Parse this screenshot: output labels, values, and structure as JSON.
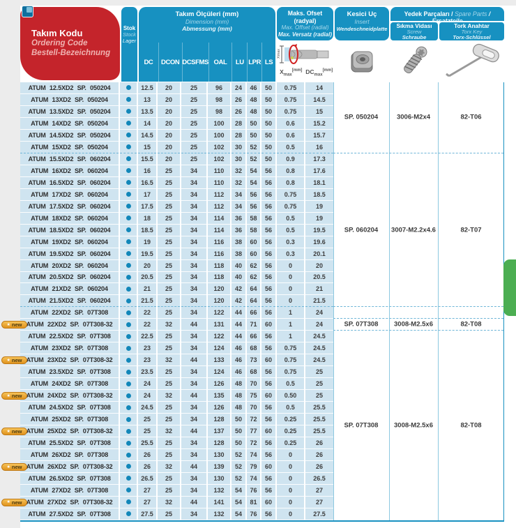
{
  "header": {
    "ordering_code": {
      "line1": "Takım Kodu",
      "line2": "Ordering Code",
      "line3": "Bestell-Bezeichnung"
    },
    "stock": {
      "line1": "Stok",
      "line2": "Stock",
      "line3": "Lager"
    },
    "dimensions": {
      "title1": "Takım Ölçüleri (mm)",
      "title2": "Dimension (mm)",
      "title3": "Abmessung (mm)",
      "columns": [
        "DC",
        "DCON",
        "DCSFMS",
        "OAL",
        "LU",
        "LPR",
        "LS"
      ]
    },
    "offset": {
      "title1": "Maks. Ofset (radyal)",
      "title2": "Max. Offset (radial)",
      "title3": "Max. Versatz (radial)",
      "xmax": {
        "base": "X",
        "sub": "max",
        "unit": "[mm]"
      },
      "dcmax": {
        "base": "DC",
        "sub": "max",
        "unit": "[mm]"
      },
      "illus_label": "Xmax"
    },
    "insert": {
      "title1": "Kesici Uç",
      "title2": "Insert",
      "title3": "Wendeschneidplatte"
    },
    "spare": {
      "banner1": "Yedek Parçaları /",
      "banner2": " Spare Parts ",
      "banner3": "/ Ersatzteile",
      "screw": {
        "title1": "Sıkma Vidası",
        "title2": "Screw",
        "title3": "Schraube"
      },
      "torx": {
        "title1": "Tork Anahtar",
        "title2": "Torx Key",
        "title3": "Torx-Schlüssel"
      }
    }
  },
  "badge": {
    "label": "new",
    "star": "★"
  },
  "rows": [
    {
      "code": "ATUM 12.5XD2 SP. 050204",
      "new": false,
      "stock": true,
      "dc": "12.5",
      "dcon": "20",
      "dcsfms": "25",
      "oal": "96",
      "lu": "24",
      "lpr": "46",
      "ls": "50",
      "xmax": "0.75",
      "dcmax": "14",
      "sep": false
    },
    {
      "code": "ATUM 13XD2 SP. 050204",
      "new": false,
      "stock": true,
      "dc": "13",
      "dcon": "20",
      "dcsfms": "25",
      "oal": "98",
      "lu": "26",
      "lpr": "48",
      "ls": "50",
      "xmax": "0.75",
      "dcmax": "14.5",
      "sep": false
    },
    {
      "code": "ATUM 13.5XD2 SP. 050204",
      "new": false,
      "stock": true,
      "dc": "13.5",
      "dcon": "20",
      "dcsfms": "25",
      "oal": "98",
      "lu": "26",
      "lpr": "48",
      "ls": "50",
      "xmax": "0.75",
      "dcmax": "15",
      "sep": false
    },
    {
      "code": "ATUM 14XD2 SP. 050204",
      "new": false,
      "stock": true,
      "dc": "14",
      "dcon": "20",
      "dcsfms": "25",
      "oal": "100",
      "lu": "28",
      "lpr": "50",
      "ls": "50",
      "xmax": "0.6",
      "dcmax": "15.2",
      "sep": false
    },
    {
      "code": "ATUM 14.5XD2 SP. 050204",
      "new": false,
      "stock": true,
      "dc": "14.5",
      "dcon": "20",
      "dcsfms": "25",
      "oal": "100",
      "lu": "28",
      "lpr": "50",
      "ls": "50",
      "xmax": "0.6",
      "dcmax": "15.7",
      "sep": false
    },
    {
      "code": "ATUM 15XD2 SP. 050204",
      "new": false,
      "stock": true,
      "dc": "15",
      "dcon": "20",
      "dcsfms": "25",
      "oal": "102",
      "lu": "30",
      "lpr": "52",
      "ls": "50",
      "xmax": "0.5",
      "dcmax": "16",
      "sep": true
    },
    {
      "code": "ATUM 15.5XD2 SP. 060204",
      "new": false,
      "stock": true,
      "dc": "15.5",
      "dcon": "20",
      "dcsfms": "25",
      "oal": "102",
      "lu": "30",
      "lpr": "52",
      "ls": "50",
      "xmax": "0.9",
      "dcmax": "17.3",
      "sep": false
    },
    {
      "code": "ATUM 16XD2 SP. 060204",
      "new": false,
      "stock": true,
      "dc": "16",
      "dcon": "25",
      "dcsfms": "34",
      "oal": "110",
      "lu": "32",
      "lpr": "54",
      "ls": "56",
      "xmax": "0.8",
      "dcmax": "17.6",
      "sep": false
    },
    {
      "code": "ATUM 16.5XD2 SP. 060204",
      "new": false,
      "stock": true,
      "dc": "16.5",
      "dcon": "25",
      "dcsfms": "34",
      "oal": "110",
      "lu": "32",
      "lpr": "54",
      "ls": "56",
      "xmax": "0.8",
      "dcmax": "18.1",
      "sep": false
    },
    {
      "code": "ATUM 17XD2 SP. 060204",
      "new": false,
      "stock": true,
      "dc": "17",
      "dcon": "25",
      "dcsfms": "34",
      "oal": "112",
      "lu": "34",
      "lpr": "56",
      "ls": "56",
      "xmax": "0.75",
      "dcmax": "18.5",
      "sep": false
    },
    {
      "code": "ATUM 17.5XD2 SP. 060204",
      "new": false,
      "stock": true,
      "dc": "17.5",
      "dcon": "25",
      "dcsfms": "34",
      "oal": "112",
      "lu": "34",
      "lpr": "56",
      "ls": "56",
      "xmax": "0.75",
      "dcmax": "19",
      "sep": false
    },
    {
      "code": "ATUM 18XD2 SP. 060204",
      "new": false,
      "stock": true,
      "dc": "18",
      "dcon": "25",
      "dcsfms": "34",
      "oal": "114",
      "lu": "36",
      "lpr": "58",
      "ls": "56",
      "xmax": "0.5",
      "dcmax": "19",
      "sep": false
    },
    {
      "code": "ATUM 18.5XD2 SP. 060204",
      "new": false,
      "stock": true,
      "dc": "18.5",
      "dcon": "25",
      "dcsfms": "34",
      "oal": "114",
      "lu": "36",
      "lpr": "58",
      "ls": "56",
      "xmax": "0.5",
      "dcmax": "19.5",
      "sep": false
    },
    {
      "code": "ATUM 19XD2 SP. 060204",
      "new": false,
      "stock": true,
      "dc": "19",
      "dcon": "25",
      "dcsfms": "34",
      "oal": "116",
      "lu": "38",
      "lpr": "60",
      "ls": "56",
      "xmax": "0.3",
      "dcmax": "19.6",
      "sep": false
    },
    {
      "code": "ATUM 19.5XD2 SP. 060204",
      "new": false,
      "stock": true,
      "dc": "19.5",
      "dcon": "25",
      "dcsfms": "34",
      "oal": "116",
      "lu": "38",
      "lpr": "60",
      "ls": "56",
      "xmax": "0.3",
      "dcmax": "20.1",
      "sep": false
    },
    {
      "code": "ATUM 20XD2 SP. 060204",
      "new": false,
      "stock": true,
      "dc": "20",
      "dcon": "25",
      "dcsfms": "34",
      "oal": "118",
      "lu": "40",
      "lpr": "62",
      "ls": "56",
      "xmax": "0",
      "dcmax": "20",
      "sep": false
    },
    {
      "code": "ATUM 20.5XD2 SP. 060204",
      "new": false,
      "stock": true,
      "dc": "20.5",
      "dcon": "25",
      "dcsfms": "34",
      "oal": "118",
      "lu": "40",
      "lpr": "62",
      "ls": "56",
      "xmax": "0",
      "dcmax": "20.5",
      "sep": false
    },
    {
      "code": "ATUM 21XD2 SP. 060204",
      "new": false,
      "stock": true,
      "dc": "21",
      "dcon": "25",
      "dcsfms": "34",
      "oal": "120",
      "lu": "42",
      "lpr": "64",
      "ls": "56",
      "xmax": "0",
      "dcmax": "21",
      "sep": false
    },
    {
      "code": "ATUM 21.5XD2 SP. 060204",
      "new": false,
      "stock": true,
      "dc": "21.5",
      "dcon": "25",
      "dcsfms": "34",
      "oal": "120",
      "lu": "42",
      "lpr": "64",
      "ls": "56",
      "xmax": "0",
      "dcmax": "21.5",
      "sep": true
    },
    {
      "code": "ATUM 22XD2 SP. 07T308",
      "new": false,
      "stock": true,
      "dc": "22",
      "dcon": "25",
      "dcsfms": "34",
      "oal": "122",
      "lu": "44",
      "lpr": "66",
      "ls": "56",
      "xmax": "1",
      "dcmax": "24",
      "sep": false
    },
    {
      "code": "ATUM 22XD2 SP. 07T308-32",
      "new": true,
      "stock": true,
      "dc": "22",
      "dcon": "32",
      "dcsfms": "44",
      "oal": "131",
      "lu": "44",
      "lpr": "71",
      "ls": "60",
      "xmax": "1",
      "dcmax": "24",
      "sep": false
    },
    {
      "code": "ATUM 22.5XD2 SP. 07T308",
      "new": false,
      "stock": true,
      "dc": "22.5",
      "dcon": "25",
      "dcsfms": "34",
      "oal": "122",
      "lu": "44",
      "lpr": "66",
      "ls": "56",
      "xmax": "1",
      "dcmax": "24.5",
      "sep": false
    },
    {
      "code": "ATUM 23XD2 SP. 07T308",
      "new": false,
      "stock": true,
      "dc": "23",
      "dcon": "25",
      "dcsfms": "34",
      "oal": "124",
      "lu": "46",
      "lpr": "68",
      "ls": "56",
      "xmax": "0.75",
      "dcmax": "24.5",
      "sep": false
    },
    {
      "code": "ATUM 23XD2 SP. 07T308-32",
      "new": true,
      "stock": true,
      "dc": "23",
      "dcon": "32",
      "dcsfms": "44",
      "oal": "133",
      "lu": "46",
      "lpr": "73",
      "ls": "60",
      "xmax": "0.75",
      "dcmax": "24.5",
      "sep": false
    },
    {
      "code": "ATUM 23.5XD2 SP. 07T308",
      "new": false,
      "stock": true,
      "dc": "23.5",
      "dcon": "25",
      "dcsfms": "34",
      "oal": "124",
      "lu": "46",
      "lpr": "68",
      "ls": "56",
      "xmax": "0.75",
      "dcmax": "25",
      "sep": false
    },
    {
      "code": "ATUM 24XD2 SP. 07T308",
      "new": false,
      "stock": true,
      "dc": "24",
      "dcon": "25",
      "dcsfms": "34",
      "oal": "126",
      "lu": "48",
      "lpr": "70",
      "ls": "56",
      "xmax": "0.5",
      "dcmax": "25",
      "sep": false
    },
    {
      "code": "ATUM 24XD2 SP. 07T308-32",
      "new": true,
      "stock": true,
      "dc": "24",
      "dcon": "32",
      "dcsfms": "44",
      "oal": "135",
      "lu": "48",
      "lpr": "75",
      "ls": "60",
      "xmax": "0.50",
      "dcmax": "25",
      "sep": false
    },
    {
      "code": "ATUM 24.5XD2 SP. 07T308",
      "new": false,
      "stock": true,
      "dc": "24.5",
      "dcon": "25",
      "dcsfms": "34",
      "oal": "126",
      "lu": "48",
      "lpr": "70",
      "ls": "56",
      "xmax": "0.5",
      "dcmax": "25.5",
      "sep": false
    },
    {
      "code": "ATUM 25XD2 SP. 07T308",
      "new": false,
      "stock": true,
      "dc": "25",
      "dcon": "25",
      "dcsfms": "34",
      "oal": "128",
      "lu": "50",
      "lpr": "72",
      "ls": "56",
      "xmax": "0.25",
      "dcmax": "25.5",
      "sep": false
    },
    {
      "code": "ATUM 25XD2 SP. 07T308-32",
      "new": true,
      "stock": true,
      "dc": "25",
      "dcon": "32",
      "dcsfms": "44",
      "oal": "137",
      "lu": "50",
      "lpr": "77",
      "ls": "60",
      "xmax": "0.25",
      "dcmax": "25.5",
      "sep": false
    },
    {
      "code": "ATUM 25.5XD2 SP. 07T308",
      "new": false,
      "stock": true,
      "dc": "25.5",
      "dcon": "25",
      "dcsfms": "34",
      "oal": "128",
      "lu": "50",
      "lpr": "72",
      "ls": "56",
      "xmax": "0.25",
      "dcmax": "26",
      "sep": false
    },
    {
      "code": "ATUM 26XD2 SP. 07T308",
      "new": false,
      "stock": true,
      "dc": "26",
      "dcon": "25",
      "dcsfms": "34",
      "oal": "130",
      "lu": "52",
      "lpr": "74",
      "ls": "56",
      "xmax": "0",
      "dcmax": "26",
      "sep": false
    },
    {
      "code": "ATUM 26XD2 SP. 07T308-32",
      "new": true,
      "stock": true,
      "dc": "26",
      "dcon": "32",
      "dcsfms": "44",
      "oal": "139",
      "lu": "52",
      "lpr": "79",
      "ls": "60",
      "xmax": "0",
      "dcmax": "26",
      "sep": false
    },
    {
      "code": "ATUM 26.5XD2 SP. 07T308",
      "new": false,
      "stock": true,
      "dc": "26.5",
      "dcon": "25",
      "dcsfms": "34",
      "oal": "130",
      "lu": "52",
      "lpr": "74",
      "ls": "56",
      "xmax": "0",
      "dcmax": "26.5",
      "sep": false
    },
    {
      "code": "ATUM 27XD2 SP. 07T308",
      "new": false,
      "stock": true,
      "dc": "27",
      "dcon": "25",
      "dcsfms": "34",
      "oal": "132",
      "lu": "54",
      "lpr": "76",
      "ls": "56",
      "xmax": "0",
      "dcmax": "27",
      "sep": false
    },
    {
      "code": "ATUM 27XD2 SP. 07T308-32",
      "new": true,
      "stock": true,
      "dc": "27",
      "dcon": "32",
      "dcsfms": "44",
      "oal": "141",
      "lu": "54",
      "lpr": "81",
      "ls": "60",
      "xmax": "0",
      "dcmax": "27",
      "sep": false
    },
    {
      "code": "ATUM 27.5XD2 SP. 07T308",
      "new": false,
      "stock": true,
      "dc": "27.5",
      "dcon": "25",
      "dcsfms": "34",
      "oal": "132",
      "lu": "54",
      "lpr": "76",
      "ls": "56",
      "xmax": "0",
      "dcmax": "27.5",
      "sep": false
    }
  ],
  "insert_groups": [
    {
      "rows": 6,
      "insert": "SP. 050204",
      "screw": "3006-M2x4",
      "torx": "82-T06"
    },
    {
      "rows": 13,
      "insert": "SP. 060204",
      "screw": "3007-M2.2x4.6",
      "torx": "82-T07"
    },
    {
      "rows": 1,
      "insert": "",
      "screw": "",
      "torx": ""
    },
    {
      "rows": 1,
      "insert": "SP. 07T308",
      "screw": "3008-M2.5x6",
      "torx": "82-T08"
    },
    {
      "rows": 16,
      "insert": "SP. 07T308",
      "screw": "3008-M2.5x6",
      "torx": "82-T08"
    }
  ],
  "colors": {
    "teal": "#1791c1",
    "teal_text_light": "#a5d7ea",
    "red": "#c4242b",
    "red_text_light": "#efb3b1",
    "cell_blue": "#cfe4f0",
    "dash": "#6fb6d8",
    "dot": "#1287b9",
    "green_tab": "#4cae52",
    "badge_orange": "#eda33a",
    "badge_border": "#c07a16",
    "text_dark": "#3c3c3c"
  }
}
